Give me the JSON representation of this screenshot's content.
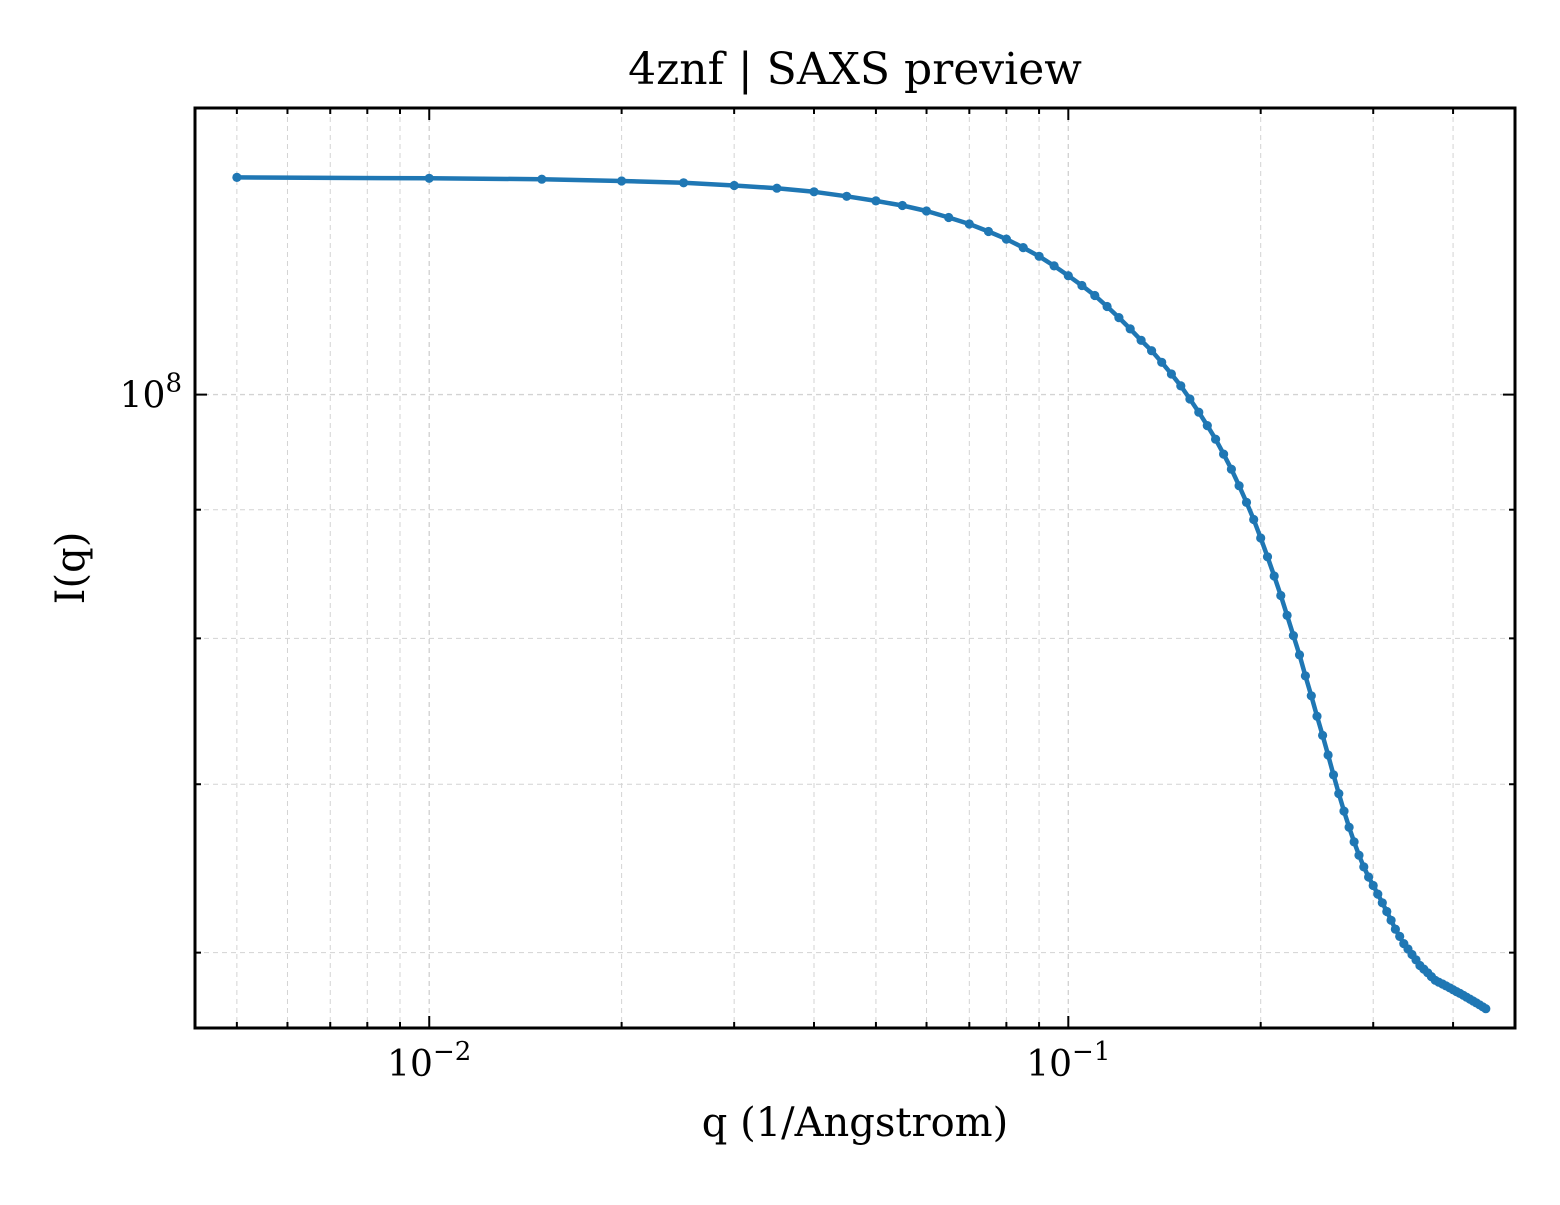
{
  "chart_data": {
    "type": "line",
    "title": "4znf | SAXS preview",
    "xlabel": "q (1/Angstrom)",
    "ylabel": "I(q)",
    "xscale": "log",
    "yscale": "log",
    "xlim": [
      0.0043,
      0.5
    ],
    "ylim": [
      56000000.0,
      130000000.0
    ],
    "grid": true,
    "legend": "none",
    "x_ticks": [
      {
        "value": 0.01,
        "base": "10",
        "exp": "−2"
      },
      {
        "value": 0.1,
        "base": "10",
        "exp": "−1"
      }
    ],
    "y_ticks": [
      {
        "value": 100000000.0,
        "base": "10",
        "exp": "8"
      }
    ],
    "series": [
      {
        "color": "#1f77b4",
        "x": [
          0.005,
          0.01,
          0.015,
          0.02,
          0.025,
          0.03,
          0.035,
          0.04,
          0.045,
          0.05,
          0.055,
          0.06,
          0.065,
          0.07,
          0.075,
          0.08,
          0.085,
          0.09,
          0.095,
          0.1,
          0.105,
          0.11,
          0.115,
          0.12,
          0.125,
          0.13,
          0.135,
          0.14,
          0.145,
          0.15,
          0.155,
          0.16,
          0.165,
          0.17,
          0.175,
          0.18,
          0.185,
          0.19,
          0.195,
          0.2,
          0.205,
          0.21,
          0.215,
          0.22,
          0.225,
          0.23,
          0.235,
          0.24,
          0.245,
          0.25,
          0.255,
          0.26,
          0.265,
          0.27,
          0.275,
          0.28,
          0.285,
          0.29,
          0.295,
          0.3,
          0.305,
          0.31,
          0.315,
          0.32,
          0.325,
          0.33,
          0.335,
          0.34,
          0.345,
          0.35,
          0.355,
          0.36,
          0.365,
          0.37,
          0.375,
          0.38,
          0.385,
          0.39,
          0.395,
          0.4,
          0.405,
          0.41,
          0.415,
          0.42,
          0.425,
          0.43,
          0.435,
          0.44,
          0.445,
          0.45
        ],
        "y": [
          122000000,
          121900000,
          121800000,
          121600000,
          121400000,
          121100000,
          120800000,
          120400000,
          119900000,
          119400000,
          118900000,
          118300000,
          117600000,
          116900000,
          116100000,
          115300000,
          114400000,
          113500000,
          112500000,
          111500000,
          110500000,
          109500000,
          108400000,
          107300000,
          106200000,
          105100000,
          104100000,
          103000000,
          101900000,
          100800000,
          99600000,
          98400000,
          97200000,
          96000000,
          94700000,
          93400000,
          92000000,
          90600000,
          89200000,
          87700000,
          86200000,
          84700000,
          83200000,
          81700000,
          80200000,
          78800000,
          77300000,
          75900000,
          74500000,
          73200000,
          71900000,
          70600000,
          69400000,
          68300000,
          67300000,
          66400000,
          65600000,
          64900000,
          64300000,
          63800000,
          63300000,
          62800000,
          62300000,
          61800000,
          61300000,
          60900000,
          60500000,
          60200000,
          59900000,
          59600000,
          59300000,
          59100000,
          58900000,
          58700000,
          58500000,
          58400000,
          58300000,
          58200000,
          58100000,
          58000000,
          57900000,
          57800000,
          57700000,
          57600000,
          57500000,
          57400000,
          57300000,
          57200000,
          57100000,
          57000000
        ]
      }
    ]
  }
}
